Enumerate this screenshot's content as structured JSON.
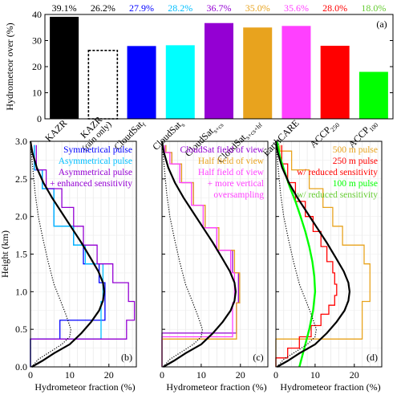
{
  "chart_data": [
    {
      "panel": "(a)",
      "type": "bar",
      "ylabel": "Hydrometeor over (%)",
      "ylim": [
        0,
        40
      ],
      "yticks": [
        0,
        10,
        20,
        30,
        40
      ],
      "categories": [
        "KAZR",
        "KAZR (rain only)",
        "CloudSat_f",
        "CloudSat_s",
        "CloudSat_s+cs",
        "CloudSat_s+cs+hf",
        "EarthCARE",
        "ACCP_250",
        "ACCP_100"
      ],
      "category_labels": [
        {
          "main": "KAZR",
          "sub": ""
        },
        {
          "main": "KAZR",
          "sub": "(rain only)"
        },
        {
          "main": "CloudSat",
          "sub": "f"
        },
        {
          "main": "CloudSat",
          "sub": "s"
        },
        {
          "main": "CloudSat",
          "sub": "s+cs"
        },
        {
          "main": "CloudSat",
          "sub": "s+cs+hf"
        },
        {
          "main": "EarthCARE",
          "sub": ""
        },
        {
          "main": "ACCP",
          "sub": "250"
        },
        {
          "main": "ACCP",
          "sub": "100"
        }
      ],
      "values": [
        39.1,
        26.2,
        27.9,
        28.2,
        36.7,
        35.0,
        35.6,
        28.0,
        18.0
      ],
      "value_labels": [
        "39.1%",
        "26.2%",
        "27.9%",
        "28.2%",
        "36.7%",
        "35.0%",
        "35.6%",
        "28.0%",
        "18.0%"
      ],
      "colors": [
        "#000000",
        "#ffffff",
        "#0000ff",
        "#00ffff",
        "#9400d3",
        "#e8a31e",
        "#ff40ff",
        "#ff0000",
        "#00ff00"
      ],
      "label_colors": [
        "#000000",
        "#000000",
        "#0000ff",
        "#00bfff",
        "#9400d3",
        "#e8a31e",
        "#ff40ff",
        "#ff0000",
        "#66cc33"
      ],
      "dashed": [
        false,
        true,
        false,
        false,
        false,
        false,
        false,
        false,
        false
      ]
    },
    {
      "panel": "(b)",
      "type": "line",
      "xlabel": "Hydrometeor fraction (%)",
      "ylabel": "Height (km)",
      "xlim": [
        0,
        27
      ],
      "ylim": [
        0,
        3.0
      ],
      "xticks": [
        0,
        10,
        20
      ],
      "yticks": [
        0,
        0.5,
        1.0,
        1.5,
        2.0,
        2.5,
        3.0
      ],
      "ytick_labels": [
        "0.0",
        "0.5",
        "1.0",
        "1.5",
        "2.0",
        "2.5",
        "3.0"
      ],
      "legend": [
        "Symmetrical pulse",
        "Asymmetrical pulse",
        "Asymmetrical pulse",
        "+ enhanced sensitivity"
      ],
      "legend_colors": [
        "#0000ff",
        "#00bfff",
        "#9400d3",
        "#9400d3"
      ],
      "series": [
        {
          "name": "Symmetrical pulse",
          "color": "#0000ff",
          "style": "step",
          "width": 1.3,
          "x": [
            0,
            0,
            7.5,
            7.5,
            19,
            19,
            19,
            17.5,
            17.5,
            13.5,
            13.5,
            11,
            11,
            6,
            6,
            3,
            3,
            1,
            1
          ],
          "y": [
            0,
            0.37,
            0.37,
            0.62,
            0.62,
            0.87,
            1.12,
            1.12,
            1.37,
            1.37,
            1.62,
            1.62,
            1.87,
            1.87,
            2.37,
            2.37,
            2.62,
            2.62,
            2.95
          ]
        },
        {
          "name": "Asymmetrical pulse",
          "color": "#00bfff",
          "style": "step",
          "width": 1.3,
          "x": [
            0,
            0,
            18,
            18,
            18.5,
            18.5,
            14,
            14,
            11,
            11,
            6,
            6,
            3,
            3,
            1,
            1
          ],
          "y": [
            0,
            0.37,
            0.37,
            0.87,
            0.87,
            1.37,
            1.37,
            1.62,
            1.62,
            1.87,
            1.87,
            2.37,
            2.37,
            2.62,
            2.62,
            2.95
          ]
        },
        {
          "name": "Asymmetrical pulse + enhanced sensitivity",
          "color": "#9400d3",
          "style": "step",
          "width": 1.3,
          "x": [
            0,
            0,
            24.5,
            24.5,
            26.5,
            26.5,
            25,
            25,
            21,
            21,
            17,
            17,
            13.5,
            13.5,
            11,
            11,
            8,
            8,
            4,
            4,
            1.5,
            1.5
          ],
          "y": [
            0,
            0.37,
            0.37,
            0.62,
            0.62,
            0.87,
            0.87,
            1.12,
            1.12,
            1.37,
            1.37,
            1.62,
            1.62,
            1.87,
            1.87,
            2.12,
            2.12,
            2.37,
            2.37,
            2.62,
            2.62,
            2.95
          ]
        },
        {
          "name": "",
          "color": "#000000",
          "style": "solid",
          "width": 2.2,
          "x": [
            0.3,
            3,
            6,
            10,
            13,
            15.5,
            17.5,
            18.5,
            18.8,
            18.5,
            17.3,
            15.3,
            13,
            10.5,
            8,
            5.5,
            3.3,
            1.6,
            0.5,
            0
          ],
          "y": [
            0,
            0.08,
            0.18,
            0.3,
            0.45,
            0.6,
            0.75,
            0.88,
            1.0,
            1.12,
            1.27,
            1.45,
            1.65,
            1.85,
            2.05,
            2.25,
            2.45,
            2.65,
            2.85,
            3.0
          ]
        },
        {
          "name": "",
          "color": "#000000",
          "style": "dotted",
          "width": 1.2,
          "x": [
            0.3,
            2,
            5,
            8,
            10,
            10.3,
            9,
            7.5,
            6,
            4.5,
            3.2,
            2,
            1.2,
            0.5,
            0
          ],
          "y": [
            0,
            0.1,
            0.2,
            0.3,
            0.4,
            0.5,
            0.7,
            0.9,
            1.1,
            1.4,
            1.7,
            2.0,
            2.3,
            2.7,
            3.0
          ]
        }
      ]
    },
    {
      "panel": "(c)",
      "type": "line",
      "xlabel": "Hydrometeor fraction (%)",
      "xlim": [
        0,
        27
      ],
      "ylim": [
        0,
        3.0
      ],
      "xticks": [
        0,
        10,
        20
      ],
      "yticks": [
        0,
        0.5,
        1.0,
        1.5,
        2.0,
        2.5,
        3.0
      ],
      "legend": [
        "CloudSat field of view",
        "Half field of view",
        "Half field of view",
        "+ more vertical",
        "oversampling"
      ],
      "legend_colors": [
        "#9400d3",
        "#e8a31e",
        "#ff40ff",
        "#ff40ff",
        "#ff40ff"
      ],
      "series": [
        {
          "name": "CloudSat field of view",
          "color": "#9400d3",
          "style": "step",
          "width": 1.3,
          "x": [
            0,
            0,
            19,
            19,
            19.5,
            19.5,
            18,
            18,
            14,
            14,
            11,
            11,
            8,
            8,
            5,
            5,
            2.5,
            2.5,
            1,
            1
          ],
          "y": [
            0,
            0.45,
            0.45,
            0.85,
            0.85,
            1.25,
            1.25,
            1.55,
            1.55,
            1.85,
            1.85,
            2.15,
            2.15,
            2.45,
            2.45,
            2.7,
            2.7,
            2.85,
            2.85,
            2.95
          ]
        },
        {
          "name": "Half field of view",
          "color": "#e8a31e",
          "style": "step",
          "width": 1.3,
          "x": [
            0,
            0,
            19,
            19,
            19.8,
            19.8,
            18.5,
            18.5,
            14.5,
            14.5,
            11,
            11,
            8,
            8,
            5,
            5,
            2.5,
            2.5,
            1,
            1
          ],
          "y": [
            0,
            0.37,
            0.37,
            0.85,
            0.85,
            1.25,
            1.25,
            1.55,
            1.55,
            1.85,
            1.85,
            2.15,
            2.15,
            2.45,
            2.45,
            2.7,
            2.7,
            2.85,
            2.85,
            2.95
          ]
        },
        {
          "name": "Half field of view + more vertical oversampling",
          "color": "#ff40ff",
          "style": "step",
          "width": 1.3,
          "x": [
            0,
            0,
            18,
            18,
            18.5,
            18.5,
            17.5,
            17.5,
            14,
            14,
            10.5,
            10.5,
            7.5,
            7.5,
            4.5,
            4.5,
            2,
            2,
            0.7,
            0.7
          ],
          "y": [
            0,
            0.4,
            0.4,
            0.85,
            0.85,
            1.25,
            1.25,
            1.55,
            1.55,
            1.85,
            1.85,
            2.15,
            2.15,
            2.45,
            2.45,
            2.7,
            2.7,
            2.85,
            2.85,
            2.95
          ]
        },
        {
          "name": "",
          "color": "#000000",
          "style": "solid",
          "width": 2.2,
          "x": [
            0.3,
            3,
            6,
            10,
            13,
            15.5,
            17.5,
            18.5,
            18.8,
            18.5,
            17.3,
            15.3,
            13,
            10.5,
            8,
            5.5,
            3.3,
            1.6,
            0.5,
            0
          ],
          "y": [
            0,
            0.08,
            0.18,
            0.3,
            0.45,
            0.6,
            0.75,
            0.88,
            1.0,
            1.12,
            1.27,
            1.45,
            1.65,
            1.85,
            2.05,
            2.25,
            2.45,
            2.65,
            2.85,
            3.0
          ]
        },
        {
          "name": "",
          "color": "#000000",
          "style": "dotted",
          "width": 1.2,
          "x": [
            0.3,
            2,
            5,
            8,
            10,
            10.3,
            9,
            7.5,
            6,
            4.5,
            3.2,
            2,
            1.2,
            0.5,
            0
          ],
          "y": [
            0,
            0.1,
            0.2,
            0.3,
            0.4,
            0.5,
            0.7,
            0.9,
            1.1,
            1.4,
            1.7,
            2.0,
            2.3,
            2.7,
            3.0
          ]
        }
      ]
    },
    {
      "panel": "(d)",
      "type": "line",
      "xlabel": "Hydrometeor fraction (%)",
      "xlim": [
        0,
        27
      ],
      "ylim": [
        0,
        3.0
      ],
      "xticks": [
        0,
        10,
        20
      ],
      "yticks": [
        0,
        0.5,
        1.0,
        1.5,
        2.0,
        2.5,
        3.0
      ],
      "legend": [
        "500 m pulse",
        "250 m pulse",
        "w/ reduced sensitivity",
        "100 m pulse",
        "w/ reduced sensitivity"
      ],
      "legend_colors": [
        "#e8a31e",
        "#ff0000",
        "#ff0000",
        "#00ff00",
        "#66cc33"
      ],
      "series": [
        {
          "name": "500 m pulse",
          "color": "#e8a31e",
          "style": "step",
          "width": 1.3,
          "x": [
            0,
            0,
            22,
            22,
            24,
            24,
            22.5,
            22.5,
            17,
            17,
            14.5,
            14.5,
            12,
            12,
            8.5,
            8.5,
            4,
            4,
            1,
            1
          ],
          "y": [
            0,
            0.37,
            0.37,
            0.87,
            0.87,
            1.37,
            1.37,
            1.62,
            1.62,
            1.87,
            1.87,
            2.12,
            2.12,
            2.37,
            2.37,
            2.62,
            2.62,
            2.87,
            2.87,
            2.95
          ]
        },
        {
          "name": "250 m pulse w/ reduced sensitivity",
          "color": "#ff0000",
          "style": "step",
          "width": 1.3,
          "x": [
            0,
            0,
            3,
            3,
            6,
            6,
            9,
            9,
            11.5,
            11.5,
            13.5,
            13.5,
            15,
            15,
            15.5,
            15.5,
            15,
            15,
            14.5,
            14.5,
            13,
            13,
            11.5,
            11.5,
            9.5,
            9.5,
            7.5,
            7.5,
            5,
            5,
            3,
            3,
            1.5,
            1.5
          ],
          "y": [
            0,
            0.12,
            0.12,
            0.25,
            0.25,
            0.4,
            0.4,
            0.55,
            0.55,
            0.7,
            0.7,
            0.82,
            0.82,
            0.95,
            0.95,
            1.1,
            1.1,
            1.25,
            1.25,
            1.4,
            1.4,
            1.6,
            1.6,
            1.8,
            1.8,
            2.0,
            2.0,
            2.2,
            2.2,
            2.45,
            2.45,
            2.7,
            2.7,
            2.95
          ]
        },
        {
          "name": "100 m pulse w/ reduced sensitivity",
          "color": "#00ff00",
          "style": "solid",
          "width": 2.4,
          "x": [
            6,
            6.5,
            7.5,
            8.5,
            9.5,
            10,
            9.8,
            9.3,
            8.5,
            7.5,
            6.3,
            5,
            3.5,
            2.2,
            1,
            0.3
          ],
          "y": [
            0,
            0.1,
            0.3,
            0.5,
            0.75,
            1.0,
            1.2,
            1.4,
            1.6,
            1.8,
            2.0,
            2.2,
            2.4,
            2.6,
            2.8,
            3.0
          ]
        },
        {
          "name": "",
          "color": "#000000",
          "style": "solid",
          "width": 2.2,
          "x": [
            0.3,
            3,
            6,
            10,
            13,
            15.5,
            17.5,
            18.5,
            18.8,
            18.5,
            17.3,
            15.3,
            13,
            10.5,
            8,
            5.5,
            3.3,
            1.6,
            0.5,
            0
          ],
          "y": [
            0,
            0.08,
            0.18,
            0.3,
            0.45,
            0.6,
            0.75,
            0.88,
            1.0,
            1.12,
            1.27,
            1.45,
            1.65,
            1.85,
            2.05,
            2.25,
            2.45,
            2.65,
            2.85,
            3.0
          ]
        },
        {
          "name": "",
          "color": "#000000",
          "style": "dotted",
          "width": 1.2,
          "x": [
            0.3,
            2,
            5,
            8,
            10,
            10.3,
            9,
            7.5,
            6,
            4.5,
            3.2,
            2,
            1.2,
            0.5,
            0
          ],
          "y": [
            0,
            0.1,
            0.2,
            0.3,
            0.4,
            0.5,
            0.7,
            0.9,
            1.1,
            1.4,
            1.7,
            2.0,
            2.3,
            2.7,
            3.0
          ]
        }
      ]
    }
  ]
}
